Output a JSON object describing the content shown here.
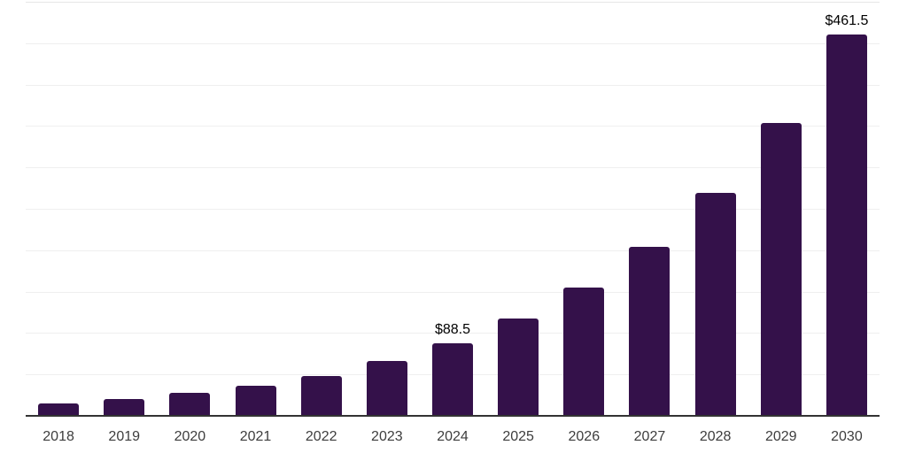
{
  "chart_data": {
    "type": "bar",
    "title": "",
    "xlabel": "",
    "ylabel": "",
    "categories": [
      "2018",
      "2019",
      "2020",
      "2021",
      "2022",
      "2023",
      "2024",
      "2025",
      "2026",
      "2027",
      "2028",
      "2029",
      "2030"
    ],
    "values": [
      16,
      21,
      28,
      37,
      49,
      66.5,
      88.5,
      118,
      155,
      205,
      270,
      354,
      461.5
    ],
    "data_labels": [
      {
        "category": "2024",
        "text": "$88.5"
      },
      {
        "category": "2030",
        "text": "$461.5"
      }
    ],
    "ylim": [
      0,
      500
    ],
    "gridline_step": 50,
    "grid": "horizontal-only",
    "legend": "none",
    "y_axis_labels_visible": false,
    "colors": {
      "bar": "#34114a",
      "gridline": "#efefef",
      "top_gridline": "#e7e7e7",
      "axis_line": "#333333",
      "tick_label": "#3d3d3d",
      "data_label": "#000000",
      "background": "#ffffff"
    }
  }
}
